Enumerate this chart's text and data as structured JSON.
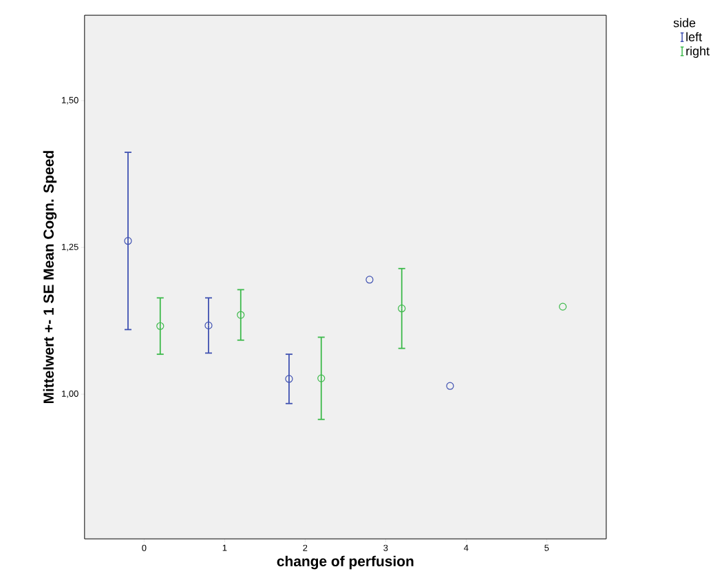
{
  "chart_data": {
    "type": "scatter",
    "xlabel": "change of perfusion",
    "ylabel": "Mittelwert +- 1 SE Mean Cogn. Speed",
    "legend_title": "side",
    "categories": [
      "0",
      "1",
      "2",
      "3",
      "4",
      "5"
    ],
    "series": [
      {
        "name": "left",
        "color": "#3f51b1",
        "values": [
          1.261,
          1.117,
          1.026,
          1.195,
          1.014,
          null
        ],
        "errors": [
          0.151,
          0.047,
          0.042,
          null,
          null,
          null
        ]
      },
      {
        "name": "right",
        "color": "#3cb94a",
        "values": [
          1.116,
          1.135,
          1.027,
          1.146,
          null,
          1.149
        ],
        "errors": [
          0.048,
          0.043,
          0.07,
          0.068,
          null,
          null
        ]
      }
    ],
    "ylim": [
      0.7535,
      1.6455
    ],
    "yticks": [
      {
        "value": 1.0,
        "label": "1,00"
      },
      {
        "value": 1.25,
        "label": "1,25"
      },
      {
        "value": 1.5,
        "label": "1,50"
      }
    ],
    "marker": "circle",
    "legend": "top right",
    "grid": false
  }
}
